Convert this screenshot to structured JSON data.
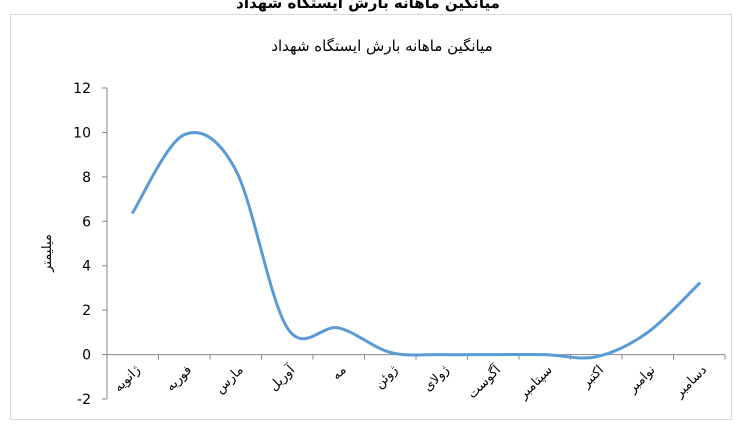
{
  "page": {
    "top_caption": "میانگین ماهانه بارش ایستگاه شهداد"
  },
  "chart_data": {
    "type": "line",
    "smooth": true,
    "title": "میانگین ماهانه بارش ایستگاه شهداد",
    "xlabel": "",
    "ylabel": "میلیمتر",
    "categories": [
      "ژانویه",
      "فوریه",
      "مارس",
      "آوریل",
      "مه",
      "ژوئن",
      "ژولای",
      "آگوست",
      "سپتامبر",
      "اکتبر",
      "نوامبر",
      "دسامبر"
    ],
    "series": [
      {
        "values": [
          6.4,
          9.9,
          8.3,
          1.2,
          1.2,
          0.1,
          0.0,
          0.0,
          0.0,
          -0.1,
          1.0,
          3.2
        ],
        "color": "#5b9bd5"
      }
    ],
    "ylim": [
      -2,
      12
    ],
    "yticks": [
      -2,
      0,
      2,
      4,
      6,
      8,
      10,
      12
    ],
    "grid": false,
    "legend": "none"
  }
}
